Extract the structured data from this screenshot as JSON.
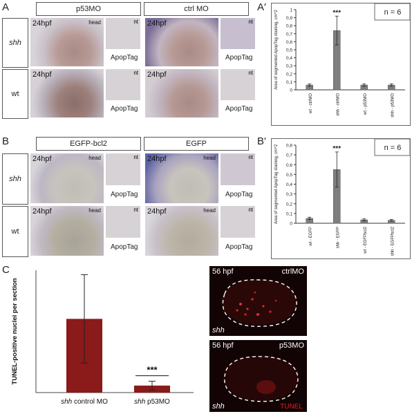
{
  "panelA": {
    "label": "A",
    "col_headers": [
      "p53MO",
      "ctrl MO"
    ],
    "row_labels": [
      "shh",
      "wt"
    ],
    "time": "24hpf",
    "head": "head",
    "nt": "nt",
    "stain": "ApopTag"
  },
  "panelB": {
    "label": "B",
    "col_headers": [
      "EGFP-bcl2",
      "EGFP"
    ],
    "row_labels": [
      "shh",
      "wt"
    ],
    "time": "24hpf",
    "head": "head",
    "nt": "nt",
    "stain": "ApopTag"
  },
  "panelC": {
    "label": "C",
    "images": [
      {
        "time": "56 hpf",
        "condition": "ctrlMO",
        "genotype": "shh",
        "stain": ""
      },
      {
        "time": "56 hpf",
        "condition": "p53MO",
        "genotype": "shh",
        "stain": "TUNEL"
      }
    ]
  },
  "chart_data": [
    {
      "panel": "A′",
      "type": "bar",
      "categories": [
        "wt - ctrlMO",
        "shh - ctrlMO",
        "wt - p53MO",
        "shh - p53MO"
      ],
      "values": [
        0.06,
        0.74,
        0.06,
        0.06
      ],
      "errors": [
        0.015,
        0.18,
        0.015,
        0.015
      ],
      "ylabel": "Area of segmented ApopTag staining, cm^2",
      "ylim": [
        0,
        1
      ],
      "yticks": [
        "0",
        "0,1",
        "0,2",
        "0,3",
        "0,4",
        "0,5",
        "0,6",
        "0,7",
        "0,8",
        "0,9",
        "1"
      ],
      "annotation": "***",
      "n_label": "n = 6",
      "bar_color": "#7f7f7f"
    },
    {
      "panel": "B′",
      "type": "bar",
      "categories": [
        "wt - EGFP",
        "shh - EGFP",
        "wt - EGFPbcl2",
        "shh - EGFPbcl2"
      ],
      "values": [
        0.05,
        0.55,
        0.035,
        0.03
      ],
      "errors": [
        0.012,
        0.18,
        0.01,
        0.008
      ],
      "ylabel": "Area of segmented ApopTag staining, cm^2",
      "ylim": [
        0,
        0.8
      ],
      "yticks": [
        "0",
        "0,1",
        "0,2",
        "0,3",
        "0,4",
        "0,5",
        "0,6",
        "0,7",
        "0,8"
      ],
      "annotation": "***",
      "n_label": "n = 6",
      "bar_color": "#7f7f7f"
    },
    {
      "panel": "C",
      "type": "bar",
      "categories": [
        "shh control MO",
        "shh p53MO"
      ],
      "cat_italic": [
        "shh",
        "shh"
      ],
      "cat_rest": [
        " control MO",
        " p53MO"
      ],
      "values": [
        25.3,
        2.4
      ],
      "errors": [
        15.2,
        1.5
      ],
      "ylabel": "TUNEL-positive  nuclei per section",
      "ylim": [
        0,
        42
      ],
      "annotation": "***",
      "bar_color": "#8b1a1a"
    }
  ]
}
